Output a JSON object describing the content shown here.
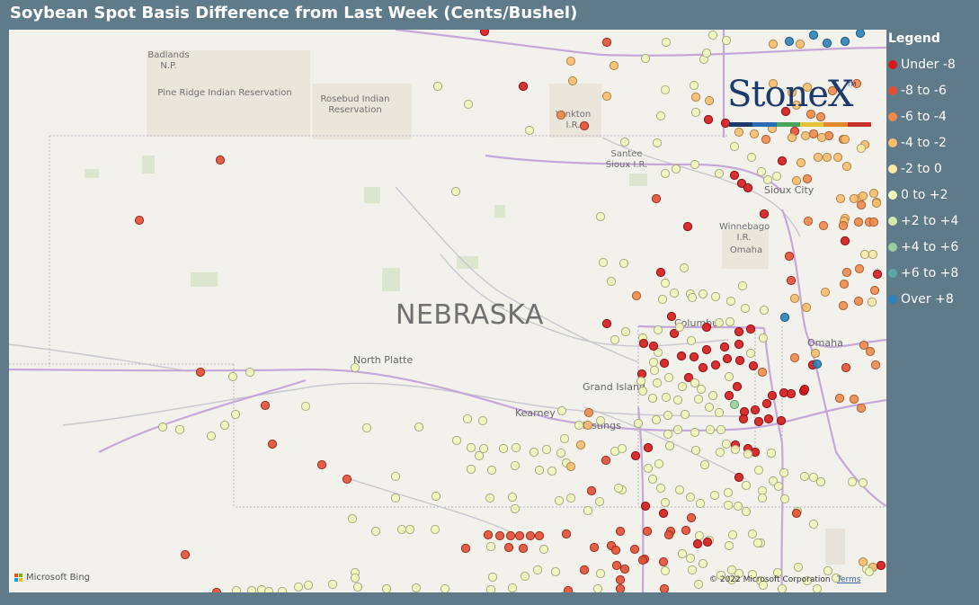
{
  "title": "Soybean Spot Basis Difference from Last Week (Cents/Bushel)",
  "map": {
    "state_label": "NEBRASKA",
    "places": [
      {
        "name": "North Platte"
      },
      {
        "name": "Grand Island"
      },
      {
        "name": "Kearney"
      },
      {
        "name": "Hastings"
      },
      {
        "name": "Columbus"
      },
      {
        "name": "Omaha"
      },
      {
        "name": "Sioux City"
      }
    ],
    "reservations": [
      {
        "name": "Badlands N.P."
      },
      {
        "name": "Pine Ridge Indian Reservation"
      },
      {
        "name": "Rosebud Indian Reservation"
      },
      {
        "name": "Yankton I.R."
      },
      {
        "name": "Santee Sioux I.R."
      },
      {
        "name": "Winnebago I.R."
      },
      {
        "name": "Omaha"
      }
    ],
    "attribution": "Microsoft Bing",
    "copyright": "© 2022 Microsoft Corporation",
    "terms": "Terms"
  },
  "logo": {
    "text": "StoneX",
    "tm": "TM",
    "colors": [
      "#1d3a6d",
      "#2a6db5",
      "#4aa35a",
      "#e4c23a",
      "#e08a2c",
      "#c7302b"
    ]
  },
  "legend": {
    "title": "Legend",
    "items": [
      {
        "label": "Under -8",
        "color": "#d7191c"
      },
      {
        "label": "-8 to -6",
        "color": "#e34f36"
      },
      {
        "label": "-6 to -4",
        "color": "#f08a4b"
      },
      {
        "label": "-4 to -2",
        "color": "#f9bd6e"
      },
      {
        "label": "-2 to 0",
        "color": "#fde9a7"
      },
      {
        "label": "0 to +2",
        "color": "#f2f7bd"
      },
      {
        "label": "+2 to +4",
        "color": "#d2ebaa"
      },
      {
        "label": "+4 to +6",
        "color": "#99cf9c"
      },
      {
        "label": "+6 to +8",
        "color": "#5fa8a8"
      },
      {
        "label": "Over +8",
        "color": "#2b83ba"
      }
    ]
  }
}
